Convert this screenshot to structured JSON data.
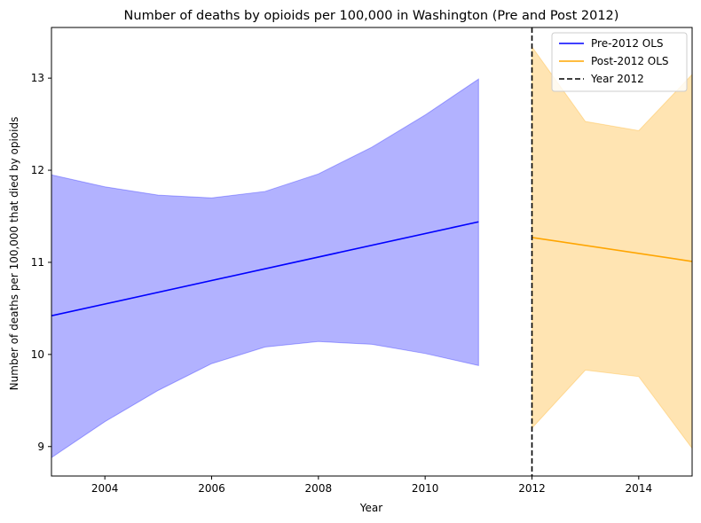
{
  "chart_data": {
    "type": "line",
    "title": "Number of deaths by opioids per 100,000 in Washington (Pre and Post 2012)",
    "xlabel": "Year",
    "ylabel": "Number of deaths per 100,000 that died by opioids",
    "xlim": [
      2003,
      2015
    ],
    "ylim": [
      8.68,
      13.55
    ],
    "xticks": [
      2004,
      2006,
      2008,
      2010,
      2012,
      2014
    ],
    "yticks": [
      9,
      10,
      11,
      12,
      13
    ],
    "legend_position": "top-right",
    "series": [
      {
        "name": "Pre-2012 OLS",
        "color": "#0000ff",
        "x": [
          2003,
          2011
        ],
        "y": [
          10.42,
          11.44
        ],
        "band": {
          "color": "#0000ff",
          "x": [
            2003,
            2004,
            2005,
            2006,
            2007,
            2008,
            2009,
            2010,
            2011
          ],
          "upper": [
            11.95,
            11.82,
            11.73,
            11.7,
            11.77,
            11.96,
            12.25,
            12.6,
            12.99
          ],
          "lower": [
            8.88,
            9.27,
            9.61,
            9.9,
            10.08,
            10.14,
            10.11,
            10.01,
            9.88
          ]
        }
      },
      {
        "name": "Post-2012 OLS",
        "color": "#ffa500",
        "x": [
          2012,
          2015
        ],
        "y": [
          11.27,
          11.01
        ],
        "band": {
          "color": "#ffa500",
          "x": [
            2012,
            2013,
            2014,
            2015
          ],
          "upper": [
            13.34,
            12.53,
            12.43,
            13.04
          ],
          "lower": [
            9.2,
            9.83,
            9.76,
            8.98
          ]
        }
      },
      {
        "name": "Year 2012",
        "color": "#000000",
        "style": "dashed",
        "vline_x": 2012
      }
    ]
  }
}
